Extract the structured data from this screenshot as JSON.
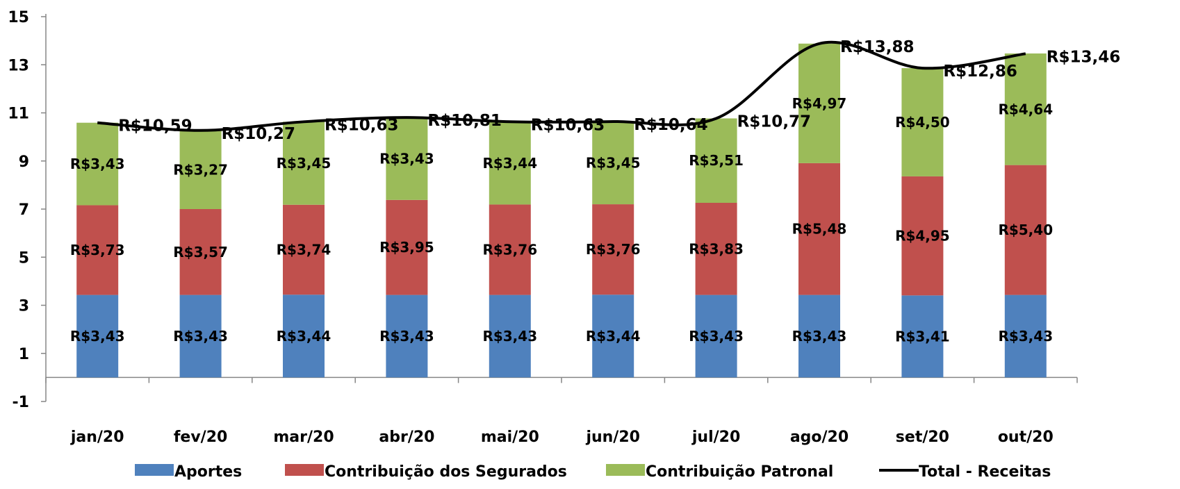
{
  "chart_data": {
    "type": "bar",
    "stacked": true,
    "categories": [
      "jan/20",
      "fev/20",
      "mar/20",
      "abr/20",
      "mai/20",
      "jun/20",
      "jul/20",
      "ago/20",
      "set/20",
      "out/20"
    ],
    "series": [
      {
        "name": "Aportes",
        "color": "#4f81bd",
        "values": [
          3.43,
          3.43,
          3.44,
          3.43,
          3.43,
          3.44,
          3.43,
          3.43,
          3.41,
          3.43
        ],
        "labels": [
          "R$3,43",
          "R$3,43",
          "R$3,44",
          "R$3,43",
          "R$3,43",
          "R$3,44",
          "R$3,43",
          "R$3,43",
          "R$3,41",
          "R$3,43"
        ]
      },
      {
        "name": "Contribuição dos Segurados",
        "color": "#c0504d",
        "values": [
          3.73,
          3.57,
          3.74,
          3.95,
          3.76,
          3.76,
          3.83,
          5.48,
          4.95,
          5.4
        ],
        "labels": [
          "R$3,73",
          "R$3,57",
          "R$3,74",
          "R$3,95",
          "R$3,76",
          "R$3,76",
          "R$3,83",
          "R$5,48",
          "R$4,95",
          "R$5,40"
        ]
      },
      {
        "name": "Contribuição Patronal",
        "color": "#9bbb59",
        "values": [
          3.43,
          3.27,
          3.45,
          3.43,
          3.44,
          3.45,
          3.51,
          4.97,
          4.5,
          4.64
        ],
        "labels": [
          "R$3,43",
          "R$3,27",
          "R$3,45",
          "R$3,43",
          "R$3,44",
          "R$3,45",
          "R$3,51",
          "R$4,97",
          "R$4,50",
          "R$4,64"
        ]
      }
    ],
    "line": {
      "name": "Total - Receitas",
      "color": "#000000",
      "values": [
        10.59,
        10.27,
        10.63,
        10.81,
        10.63,
        10.64,
        10.77,
        13.88,
        12.86,
        13.46
      ],
      "labels": [
        "R$10,59",
        "R$10,27",
        "R$10,63",
        "R$10,81",
        "R$10,63",
        "R$10,64",
        "R$10,77",
        "R$13,88",
        "R$12,86",
        "R$13,46"
      ]
    },
    "ylim": [
      -1,
      15
    ],
    "yticks": [
      -1,
      1,
      3,
      5,
      7,
      9,
      11,
      13,
      15
    ],
    "grid": false,
    "legend_position": "bottom",
    "title": "",
    "xlabel": "",
    "ylabel": ""
  }
}
